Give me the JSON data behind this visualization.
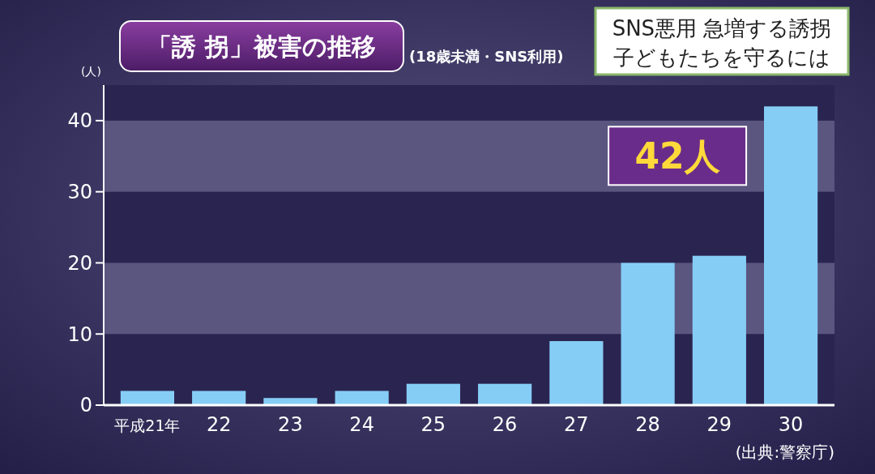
{
  "chart_data": {
    "type": "bar",
    "title": "「誘 拐」被害の推移",
    "subtitle": "(18歳未満・SNS利用)",
    "ylabel": "(人)",
    "categories": [
      "平成21年",
      "22",
      "23",
      "24",
      "25",
      "26",
      "27",
      "28",
      "29",
      "30"
    ],
    "values": [
      2,
      2,
      1,
      2,
      3,
      3,
      9,
      20,
      21,
      42
    ],
    "color": "#86cdf6",
    "ylim": [
      0,
      45
    ],
    "yticks": [
      0,
      10,
      20,
      30,
      40
    ],
    "bands": [
      {
        "axis": "y",
        "from": 10,
        "to": 20,
        "color": "#5a5680"
      },
      {
        "axis": "y",
        "from": 30,
        "to": 40,
        "color": "#5a5680"
      }
    ],
    "annotations": [
      {
        "text": "42人",
        "x": "30",
        "y": 42
      },
      "SNS悪用 急増する誘拐",
      "子どもたちを守るには",
      "(出典:警察庁)"
    ]
  }
}
